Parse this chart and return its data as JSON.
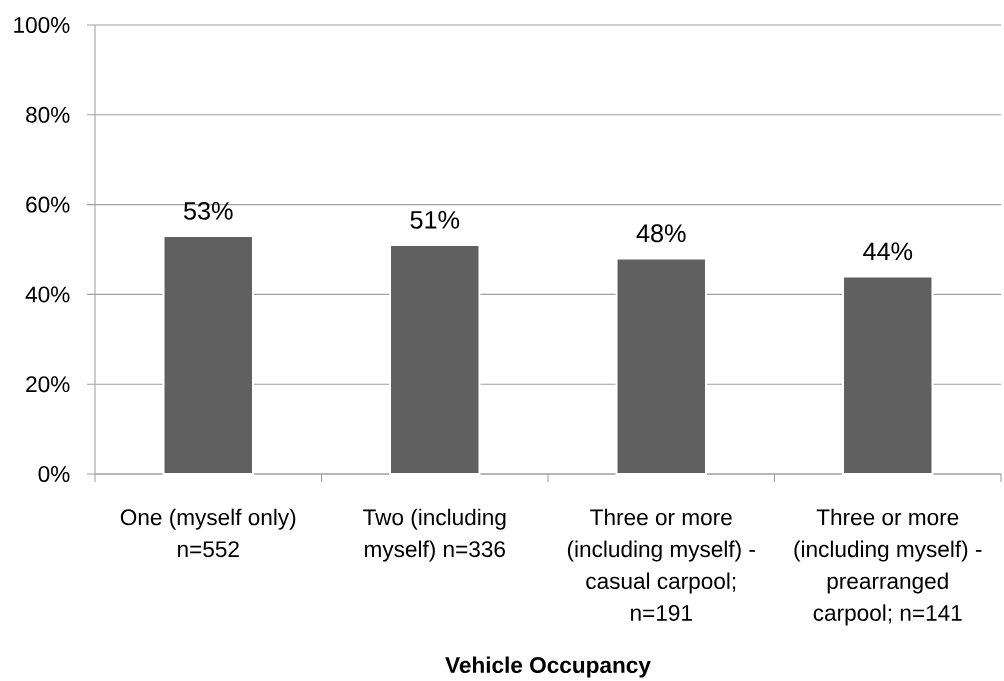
{
  "chart_data": {
    "type": "bar",
    "xlabel": "Vehicle Occupancy",
    "categories": [
      "One (myself only) n=552",
      "Two (including myself) n=336",
      "Three or more (including myself) - casual carpool; n=191",
      "Three or more (including myself) - prearranged carpool; n=141"
    ],
    "values": [
      53,
      51,
      48,
      44
    ],
    "value_labels": [
      "53%",
      "51%",
      "48%",
      "44%"
    ],
    "color": "#606060",
    "ylim": [
      0,
      100
    ],
    "yticks": [
      {
        "value": 0,
        "label": "0%"
      },
      {
        "value": 20,
        "label": "20%"
      },
      {
        "value": 40,
        "label": "40%"
      },
      {
        "value": 60,
        "label": "60%"
      },
      {
        "value": 80,
        "label": "80%"
      },
      {
        "value": 100,
        "label": "100%"
      }
    ],
    "grid": "y"
  }
}
